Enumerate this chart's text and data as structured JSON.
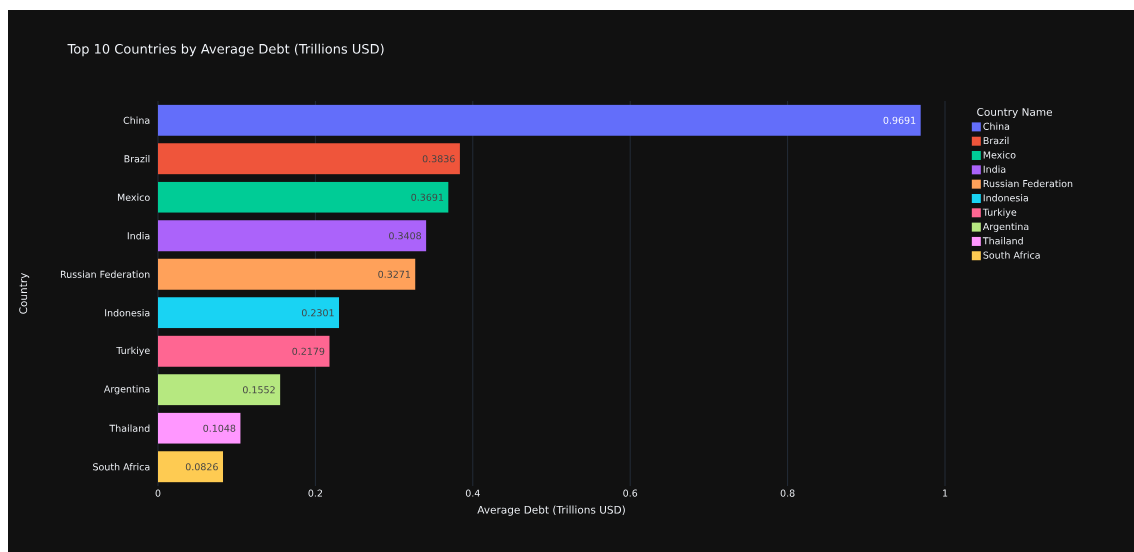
{
  "chart_data": {
    "type": "bar",
    "orientation": "horizontal",
    "title": "Top 10 Countries by Average Debt (Trillions USD)",
    "xlabel": "Average Debt (Trillions USD)",
    "ylabel": "Country",
    "legend_title": "Country Name",
    "categories": [
      "China",
      "Brazil",
      "Mexico",
      "India",
      "Russian Federation",
      "Indonesia",
      "Turkiye",
      "Argentina",
      "Thailand",
      "South Africa"
    ],
    "series": [
      {
        "name": "China",
        "color": "#636efa",
        "values": [
          0.9691,
          null,
          null,
          null,
          null,
          null,
          null,
          null,
          null,
          null
        ]
      },
      {
        "name": "Brazil",
        "color": "#ef553b",
        "values": [
          null,
          0.3836,
          null,
          null,
          null,
          null,
          null,
          null,
          null,
          null
        ]
      },
      {
        "name": "Mexico",
        "color": "#00cc96",
        "values": [
          null,
          null,
          0.3691,
          null,
          null,
          null,
          null,
          null,
          null,
          null
        ]
      },
      {
        "name": "India",
        "color": "#ab63fa",
        "values": [
          null,
          null,
          null,
          0.3408,
          null,
          null,
          null,
          null,
          null,
          null
        ]
      },
      {
        "name": "Russian Federation",
        "color": "#ffa15a",
        "values": [
          null,
          null,
          null,
          null,
          0.3271,
          null,
          null,
          null,
          null,
          null
        ]
      },
      {
        "name": "Indonesia",
        "color": "#19d3f3",
        "values": [
          null,
          null,
          null,
          null,
          null,
          0.2301,
          null,
          null,
          null,
          null
        ]
      },
      {
        "name": "Turkiye",
        "color": "#ff6692",
        "values": [
          null,
          null,
          null,
          null,
          null,
          null,
          0.2179,
          null,
          null,
          null
        ]
      },
      {
        "name": "Argentina",
        "color": "#b6e880",
        "values": [
          null,
          null,
          null,
          null,
          null,
          null,
          null,
          0.1552,
          null,
          null
        ]
      },
      {
        "name": "Thailand",
        "color": "#ff97ff",
        "values": [
          null,
          null,
          null,
          null,
          null,
          null,
          null,
          null,
          0.1048,
          null
        ]
      },
      {
        "name": "South Africa",
        "color": "#fecb52",
        "values": [
          null,
          null,
          null,
          null,
          null,
          null,
          null,
          null,
          null,
          0.0826
        ]
      }
    ],
    "xlim": [
      0,
      1
    ],
    "xticks": [
      0,
      0.2,
      0.4,
      0.6,
      0.8,
      1
    ],
    "grid": "x",
    "legend": "right",
    "data_labels": true
  }
}
